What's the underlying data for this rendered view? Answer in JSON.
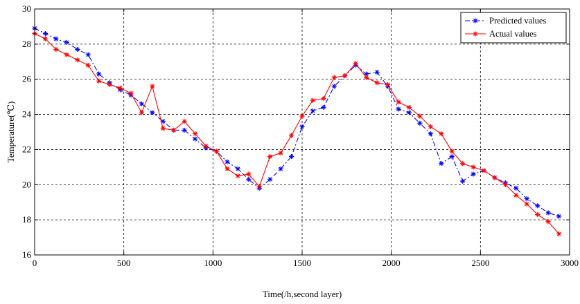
{
  "chart_data": {
    "type": "line",
    "title": "",
    "xlabel": "Time(/h,second layer)",
    "ylabel": "Temperature(℃)",
    "xlim": [
      0,
      3000
    ],
    "ylim": [
      16,
      30
    ],
    "xticks": [
      0,
      500,
      1000,
      1500,
      2000,
      2500,
      3000
    ],
    "yticks": [
      16,
      18,
      20,
      22,
      24,
      26,
      28,
      30
    ],
    "grid": true,
    "legend_position": "top-right",
    "series": [
      {
        "name": "Predicted values",
        "color": "#0000ff",
        "line_style": "dash-dot",
        "marker": "asterisk",
        "x": [
          0,
          60,
          120,
          180,
          240,
          300,
          360,
          420,
          480,
          540,
          600,
          660,
          720,
          780,
          840,
          900,
          960,
          1020,
          1080,
          1140,
          1200,
          1260,
          1320,
          1380,
          1440,
          1500,
          1560,
          1620,
          1680,
          1740,
          1800,
          1860,
          1920,
          1980,
          2040,
          2100,
          2160,
          2220,
          2280,
          2340,
          2400,
          2460,
          2520,
          2580,
          2640,
          2700,
          2760,
          2820,
          2880,
          2940
        ],
        "y": [
          28.9,
          28.6,
          28.3,
          28.1,
          27.7,
          27.4,
          26.3,
          25.8,
          25.4,
          25.1,
          24.6,
          24.1,
          23.6,
          23.1,
          23.1,
          22.6,
          22.1,
          21.9,
          21.3,
          20.9,
          20.3,
          19.8,
          20.3,
          20.9,
          21.6,
          23.3,
          24.2,
          24.4,
          25.6,
          26.2,
          26.8,
          26.3,
          26.4,
          25.6,
          24.3,
          24.1,
          23.5,
          22.9,
          21.2,
          21.6,
          20.2,
          20.6,
          20.8,
          20.4,
          20.1,
          19.8,
          19.2,
          18.8,
          18.4,
          18.2
        ]
      },
      {
        "name": "Actual values",
        "color": "#ff0000",
        "line_style": "solid",
        "marker": "asterisk",
        "x": [
          0,
          60,
          120,
          180,
          240,
          300,
          360,
          420,
          480,
          540,
          600,
          660,
          720,
          780,
          840,
          900,
          960,
          1020,
          1080,
          1140,
          1200,
          1260,
          1320,
          1380,
          1440,
          1500,
          1560,
          1620,
          1680,
          1740,
          1800,
          1860,
          1920,
          1980,
          2040,
          2100,
          2160,
          2220,
          2280,
          2340,
          2400,
          2460,
          2520,
          2580,
          2640,
          2700,
          2760,
          2820,
          2880,
          2940
        ],
        "y": [
          28.6,
          28.3,
          27.7,
          27.4,
          27.1,
          26.8,
          25.9,
          25.7,
          25.5,
          25.2,
          24.1,
          25.6,
          23.2,
          23.1,
          23.6,
          22.9,
          22.2,
          21.9,
          20.9,
          20.5,
          20.6,
          19.9,
          21.6,
          21.8,
          22.8,
          23.9,
          24.8,
          24.9,
          26.1,
          26.2,
          26.9,
          26.1,
          25.8,
          25.7,
          24.7,
          24.4,
          23.9,
          23.3,
          22.9,
          21.9,
          21.2,
          21.0,
          20.8,
          20.4,
          20.0,
          19.4,
          18.9,
          18.3,
          17.9,
          17.2
        ]
      }
    ]
  }
}
